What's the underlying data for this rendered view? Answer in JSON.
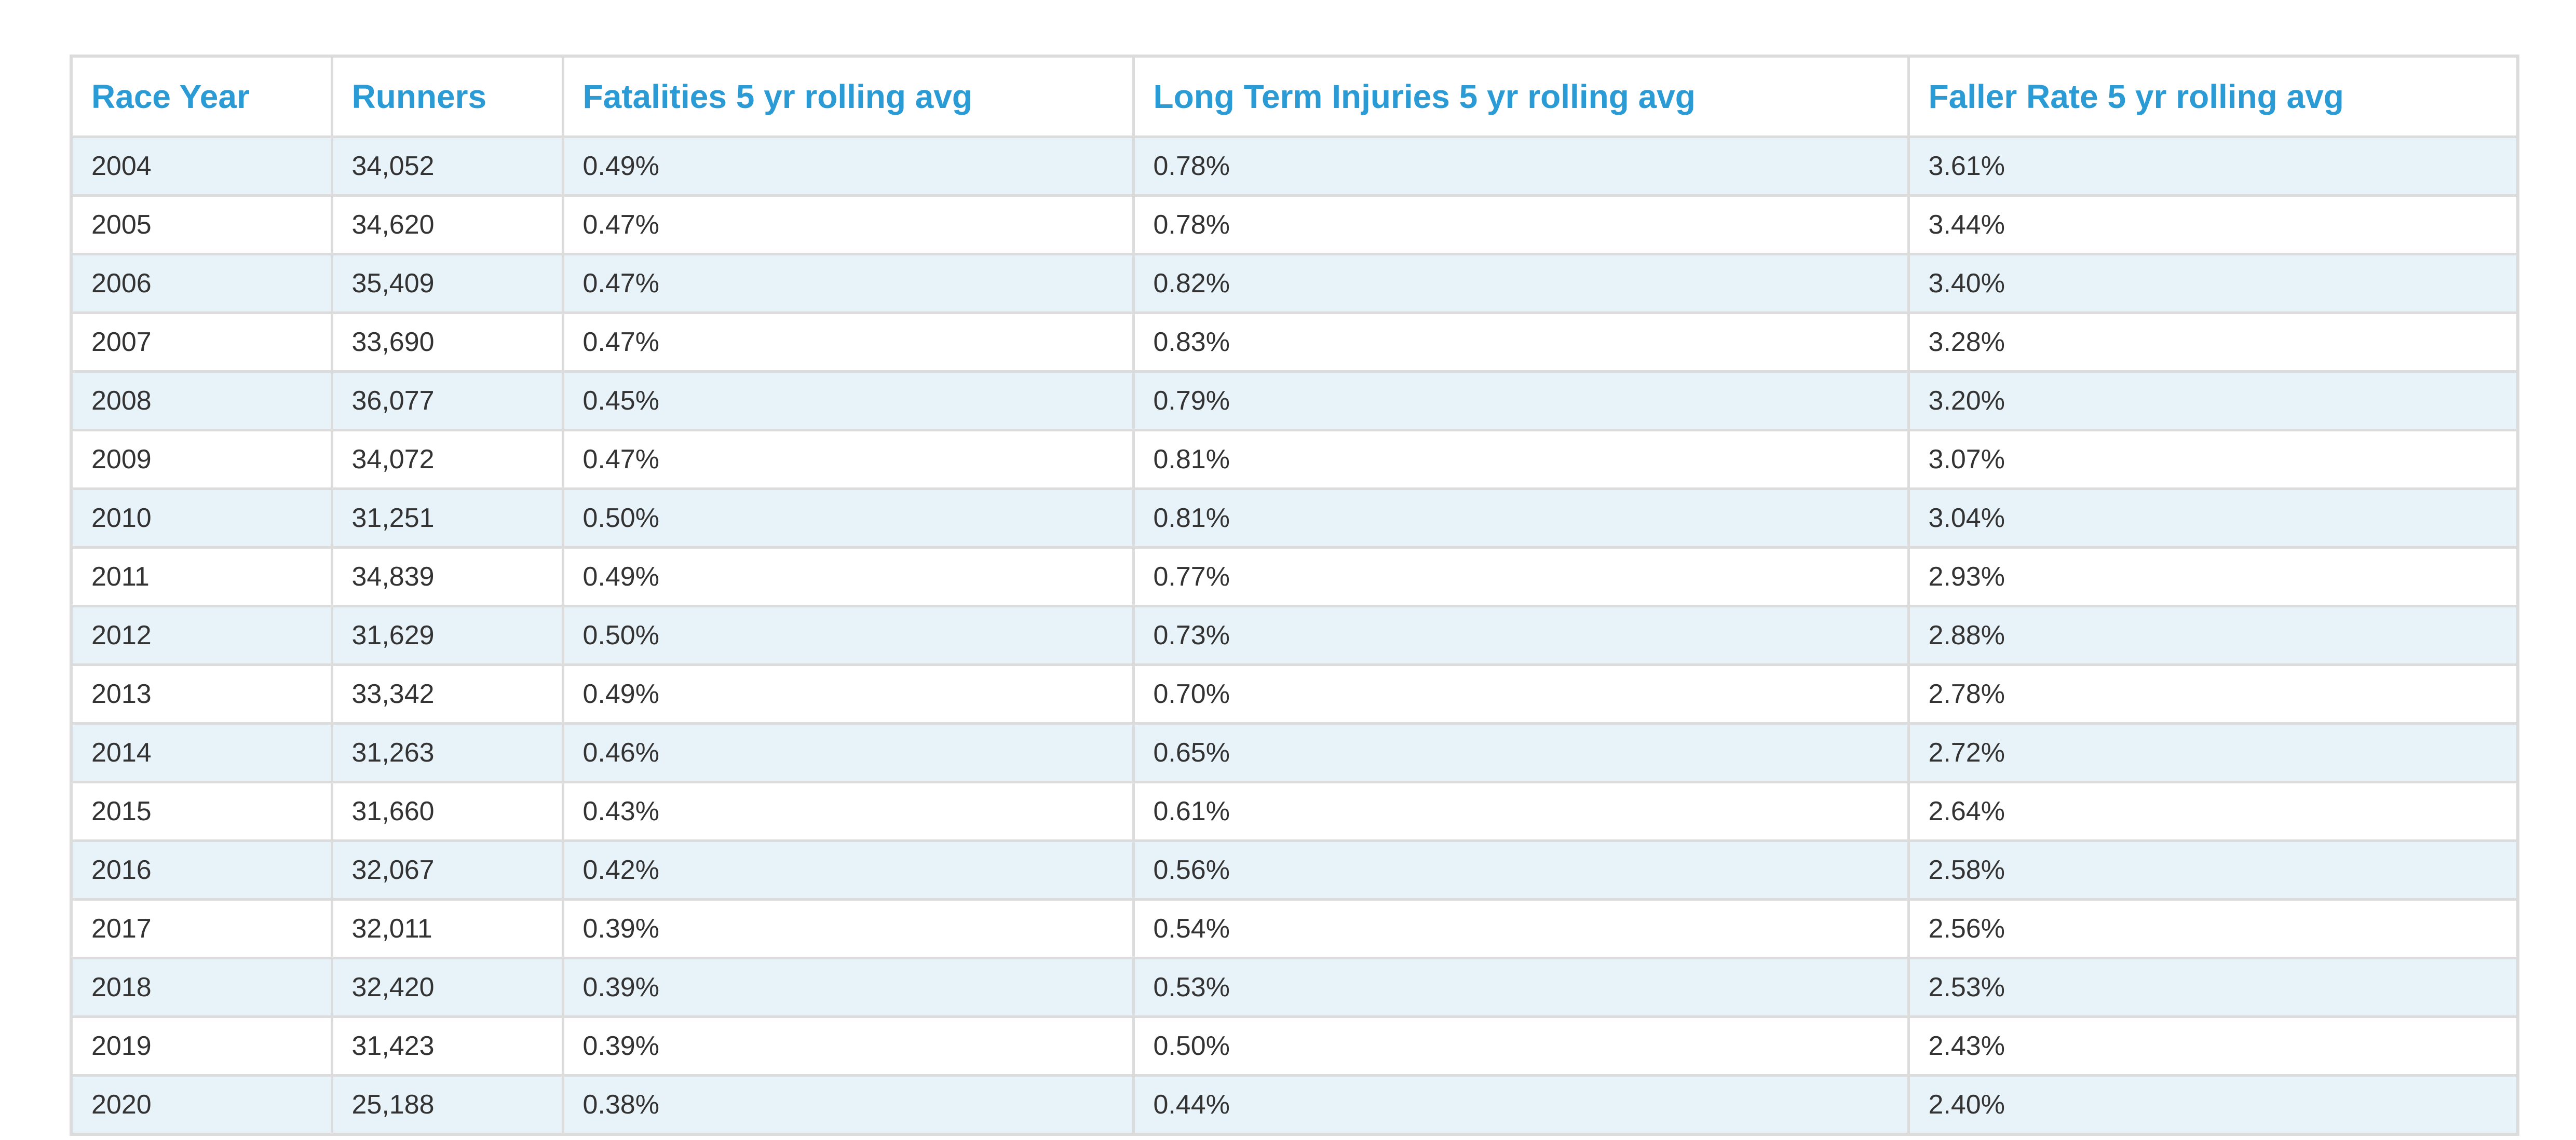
{
  "table": {
    "header": [
      "Race Year",
      "Runners",
      "Fatalities 5 yr rolling avg",
      "Long Term Injuries 5 yr rolling avg",
      "Faller Rate 5 yr rolling avg"
    ],
    "rows": [
      [
        "2004",
        "34,052",
        "0.49%",
        "0.78%",
        "3.61%"
      ],
      [
        "2005",
        "34,620",
        "0.47%",
        "0.78%",
        "3.44%"
      ],
      [
        "2006",
        "35,409",
        "0.47%",
        "0.82%",
        "3.40%"
      ],
      [
        "2007",
        "33,690",
        "0.47%",
        "0.83%",
        "3.28%"
      ],
      [
        "2008",
        "36,077",
        "0.45%",
        "0.79%",
        "3.20%"
      ],
      [
        "2009",
        "34,072",
        "0.47%",
        "0.81%",
        "3.07%"
      ],
      [
        "2010",
        "31,251",
        "0.50%",
        "0.81%",
        "3.04%"
      ],
      [
        "2011",
        "34,839",
        "0.49%",
        "0.77%",
        "2.93%"
      ],
      [
        "2012",
        "31,629",
        "0.50%",
        "0.73%",
        "2.88%"
      ],
      [
        "2013",
        "33,342",
        "0.49%",
        "0.70%",
        "2.78%"
      ],
      [
        "2014",
        "31,263",
        "0.46%",
        "0.65%",
        "2.72%"
      ],
      [
        "2015",
        "31,660",
        "0.43%",
        "0.61%",
        "2.64%"
      ],
      [
        "2016",
        "32,067",
        "0.42%",
        "0.56%",
        "2.58%"
      ],
      [
        "2017",
        "32,011",
        "0.39%",
        "0.54%",
        "2.56%"
      ],
      [
        "2018",
        "32,420",
        "0.39%",
        "0.53%",
        "2.53%"
      ],
      [
        "2019",
        "31,423",
        "0.39%",
        "0.50%",
        "2.43%"
      ],
      [
        "2020",
        "25,188",
        "0.38%",
        "0.44%",
        "2.40%"
      ]
    ]
  }
}
